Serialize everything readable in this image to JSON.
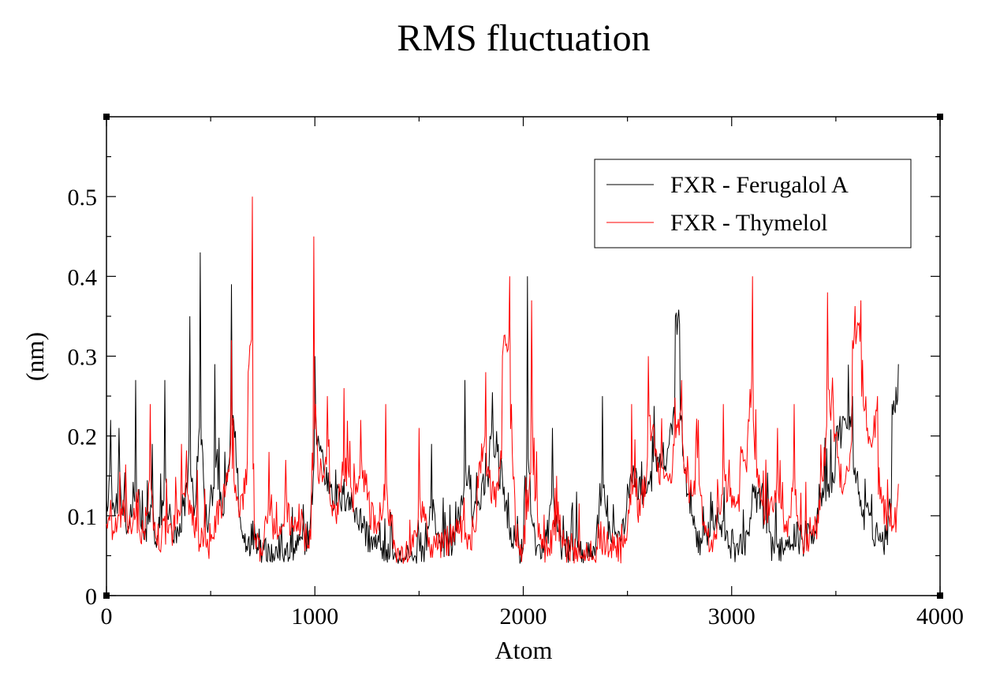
{
  "chart_data": {
    "type": "line",
    "title": "RMS fluctuation",
    "xlabel": "Atom",
    "ylabel": "(nm)",
    "xlim": [
      0,
      4000
    ],
    "ylim": [
      0,
      0.6
    ],
    "xticks": [
      0,
      1000,
      2000,
      3000,
      4000
    ],
    "xtick_labels": [
      "0",
      "1000",
      "2000",
      "3000",
      "4000"
    ],
    "yticks": [
      0,
      0.1,
      0.2,
      0.3,
      0.4,
      0.5
    ],
    "ytick_labels": [
      "0",
      "0.1",
      "0.2",
      "0.3",
      "0.4",
      "0.5"
    ],
    "grid": false,
    "legend_position": "top-right",
    "series": [
      {
        "name": "FXR - Ferugalol A",
        "color": "#000000",
        "x": [
          0,
          20,
          40,
          60,
          80,
          100,
          140,
          180,
          220,
          240,
          280,
          320,
          360,
          400,
          420,
          450,
          470,
          490,
          520,
          560,
          600,
          630,
          650,
          680,
          710,
          740,
          780,
          820,
          860,
          900,
          940,
          980,
          1000,
          1040,
          1080,
          1120,
          1160,
          1200,
          1240,
          1280,
          1320,
          1360,
          1400,
          1440,
          1480,
          1520,
          1560,
          1600,
          1640,
          1680,
          1720,
          1760,
          1800,
          1840,
          1880,
          1920,
          1960,
          2000,
          2020,
          2060,
          2100,
          2140,
          2180,
          2220,
          2260,
          2300,
          2340,
          2380,
          2420,
          2460,
          2500,
          2540,
          2580,
          2620,
          2660,
          2700,
          2730,
          2750,
          2780,
          2820,
          2860,
          2900,
          2940,
          2980,
          3020,
          3060,
          3100,
          3140,
          3180,
          3220,
          3260,
          3300,
          3340,
          3380,
          3420,
          3460,
          3500,
          3540,
          3580,
          3620,
          3660,
          3700,
          3740,
          3770,
          3800
        ],
        "y": [
          0.12,
          0.22,
          0.1,
          0.21,
          0.1,
          0.08,
          0.27,
          0.07,
          0.19,
          0.06,
          0.27,
          0.07,
          0.08,
          0.35,
          0.1,
          0.43,
          0.12,
          0.09,
          0.29,
          0.1,
          0.39,
          0.16,
          0.08,
          0.07,
          0.09,
          0.07,
          0.06,
          0.05,
          0.05,
          0.06,
          0.07,
          0.1,
          0.3,
          0.17,
          0.14,
          0.12,
          0.13,
          0.11,
          0.09,
          0.07,
          0.06,
          0.05,
          0.04,
          0.05,
          0.05,
          0.06,
          0.19,
          0.07,
          0.07,
          0.08,
          0.27,
          0.1,
          0.14,
          0.2,
          0.19,
          0.12,
          0.07,
          0.06,
          0.4,
          0.05,
          0.06,
          0.21,
          0.06,
          0.07,
          0.06,
          0.05,
          0.06,
          0.25,
          0.07,
          0.08,
          0.14,
          0.16,
          0.13,
          0.2,
          0.16,
          0.19,
          0.35,
          0.34,
          0.16,
          0.1,
          0.07,
          0.13,
          0.09,
          0.08,
          0.06,
          0.07,
          0.14,
          0.12,
          0.08,
          0.06,
          0.07,
          0.09,
          0.07,
          0.08,
          0.14,
          0.13,
          0.2,
          0.22,
          0.25,
          0.12,
          0.1,
          0.08,
          0.07,
          0.24,
          0.29
        ]
      },
      {
        "name": "FXR - Thymelol",
        "color": "#ff0000",
        "x": [
          0,
          20,
          40,
          60,
          80,
          100,
          140,
          180,
          210,
          240,
          280,
          320,
          360,
          400,
          440,
          480,
          520,
          560,
          600,
          640,
          680,
          700,
          710,
          740,
          780,
          820,
          860,
          900,
          940,
          980,
          995,
          1020,
          1060,
          1100,
          1140,
          1180,
          1220,
          1260,
          1300,
          1340,
          1380,
          1420,
          1460,
          1500,
          1540,
          1580,
          1620,
          1660,
          1700,
          1740,
          1780,
          1820,
          1860,
          1900,
          1935,
          1960,
          2000,
          2040,
          2080,
          2120,
          2160,
          2200,
          2240,
          2280,
          2320,
          2360,
          2400,
          2440,
          2480,
          2520,
          2560,
          2600,
          2640,
          2680,
          2720,
          2760,
          2800,
          2840,
          2880,
          2920,
          2960,
          3000,
          3040,
          3080,
          3100,
          3140,
          3180,
          3220,
          3260,
          3300,
          3340,
          3380,
          3420,
          3460,
          3500,
          3540,
          3580,
          3620,
          3660,
          3700,
          3740,
          3780,
          3800
        ],
        "y": [
          0.09,
          0.12,
          0.08,
          0.1,
          0.12,
          0.09,
          0.1,
          0.08,
          0.24,
          0.07,
          0.1,
          0.08,
          0.19,
          0.12,
          0.09,
          0.06,
          0.1,
          0.13,
          0.32,
          0.1,
          0.28,
          0.5,
          0.07,
          0.06,
          0.18,
          0.07,
          0.17,
          0.08,
          0.1,
          0.07,
          0.45,
          0.14,
          0.25,
          0.1,
          0.26,
          0.12,
          0.22,
          0.13,
          0.09,
          0.24,
          0.07,
          0.06,
          0.05,
          0.21,
          0.08,
          0.06,
          0.07,
          0.08,
          0.1,
          0.07,
          0.15,
          0.28,
          0.12,
          0.3,
          0.4,
          0.12,
          0.06,
          0.37,
          0.07,
          0.06,
          0.15,
          0.07,
          0.06,
          0.05,
          0.05,
          0.09,
          0.07,
          0.06,
          0.06,
          0.24,
          0.1,
          0.3,
          0.18,
          0.15,
          0.19,
          0.27,
          0.13,
          0.22,
          0.08,
          0.07,
          0.24,
          0.11,
          0.16,
          0.22,
          0.4,
          0.12,
          0.1,
          0.21,
          0.08,
          0.24,
          0.07,
          0.08,
          0.12,
          0.38,
          0.2,
          0.14,
          0.32,
          0.37,
          0.2,
          0.25,
          0.1,
          0.09,
          0.14
        ]
      }
    ]
  }
}
